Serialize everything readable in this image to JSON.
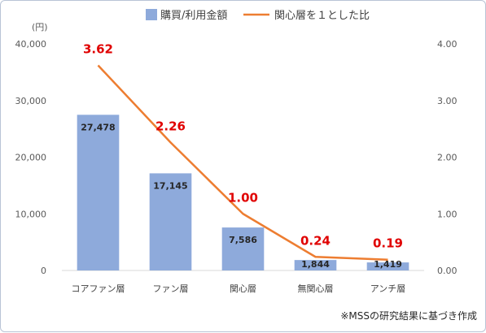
{
  "chart_data": {
    "type": "bar+line",
    "categories": [
      "コアファン層",
      "ファン層",
      "関心層",
      "無関心層",
      "アンチ層"
    ],
    "series": [
      {
        "name": "購買/利用金額",
        "type": "bar",
        "axis": "left",
        "values": [
          27478,
          17145,
          7586,
          1844,
          1419
        ],
        "labels": [
          "27,478",
          "17,145",
          "7,586",
          "1,844",
          "1,419"
        ],
        "color": "#8eaadb"
      },
      {
        "name": "関心層を１とした比",
        "type": "line",
        "axis": "right",
        "values": [
          3.62,
          2.26,
          1.0,
          0.24,
          0.19
        ],
        "labels": [
          "3.62",
          "2.26",
          "1.00",
          "0.24",
          "0.19"
        ],
        "color": "#ed7d31",
        "label_color": "#e00000"
      }
    ],
    "y_left": {
      "unit": "(円)",
      "ylim": [
        0,
        40000
      ],
      "ticks": [
        0,
        10000,
        20000,
        30000,
        40000
      ],
      "tick_labels": [
        "0",
        "10,000",
        "20,000",
        "30,000",
        "40,000"
      ]
    },
    "y_right": {
      "ylim": [
        0,
        4
      ],
      "ticks": [
        0,
        1,
        2,
        3,
        4
      ],
      "tick_labels": [
        "0.00",
        "1.00",
        "2.00",
        "3.00",
        "4.00"
      ]
    },
    "grid": false,
    "legend_position": "top"
  },
  "source_note": "※MSSの研究結果に基づき作成"
}
